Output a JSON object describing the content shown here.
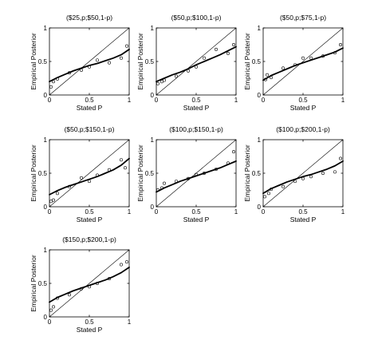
{
  "figure": {
    "ylabel": "Empirical Posterior",
    "xlabel": "Stated P"
  },
  "chart_data": [
    {
      "type": "scatter",
      "title": "($25,p;$50,1-p)",
      "xlabel": "Stated P",
      "ylabel": "Empirical Posterior",
      "xlim": [
        0,
        1
      ],
      "ylim": [
        0,
        1
      ],
      "xticks": [
        "0",
        "0.5",
        "1"
      ],
      "yticks": [
        "0",
        "0.5",
        "1"
      ],
      "series": [
        {
          "type": "scatter",
          "x": [
            0.02,
            0.05,
            0.1,
            0.25,
            0.4,
            0.5,
            0.6,
            0.75,
            0.9,
            0.97
          ],
          "y": [
            0.12,
            0.2,
            0.24,
            0.33,
            0.37,
            0.42,
            0.52,
            0.48,
            0.55,
            0.73
          ]
        },
        {
          "type": "line",
          "x": [
            0,
            0.1,
            0.2,
            0.3,
            0.4,
            0.5,
            0.6,
            0.7,
            0.8,
            0.9,
            1
          ],
          "y": [
            0.2,
            0.26,
            0.31,
            0.36,
            0.4,
            0.44,
            0.47,
            0.51,
            0.55,
            0.6,
            0.68
          ]
        },
        {
          "type": "line",
          "x": [
            0,
            1
          ],
          "y": [
            0,
            1
          ]
        }
      ]
    },
    {
      "type": "scatter",
      "title": "($50,p;$100,1-p)",
      "xlabel": "Stated P",
      "ylabel": "Empirical Posterior",
      "xlim": [
        0,
        1
      ],
      "ylim": [
        0,
        1
      ],
      "xticks": [
        "0",
        "0.5",
        "1"
      ],
      "yticks": [
        "0",
        "0.5",
        "1"
      ],
      "series": [
        {
          "type": "scatter",
          "x": [
            0.02,
            0.07,
            0.1,
            0.25,
            0.4,
            0.5,
            0.6,
            0.75,
            0.9,
            0.97
          ],
          "y": [
            0.17,
            0.2,
            0.22,
            0.28,
            0.36,
            0.42,
            0.55,
            0.68,
            0.62,
            0.75
          ]
        },
        {
          "type": "line",
          "x": [
            0,
            0.1,
            0.2,
            0.3,
            0.4,
            0.5,
            0.6,
            0.7,
            0.8,
            0.9,
            1
          ],
          "y": [
            0.2,
            0.25,
            0.3,
            0.34,
            0.39,
            0.45,
            0.5,
            0.55,
            0.6,
            0.66,
            0.72
          ]
        },
        {
          "type": "line",
          "x": [
            0,
            1
          ],
          "y": [
            0,
            1
          ]
        }
      ]
    },
    {
      "type": "scatter",
      "title": "($50,p;$75,1-p)",
      "xlabel": "Stated P",
      "ylabel": "Empirical Posterior",
      "xlim": [
        0,
        1
      ],
      "ylim": [
        0,
        1
      ],
      "xticks": [
        "0",
        "0.5",
        "1"
      ],
      "yticks": [
        "0",
        "0.5",
        "1"
      ],
      "series": [
        {
          "type": "scatter",
          "x": [
            0.03,
            0.05,
            0.1,
            0.25,
            0.4,
            0.5,
            0.6,
            0.75,
            0.9,
            0.97
          ],
          "y": [
            0.23,
            0.3,
            0.26,
            0.4,
            0.45,
            0.55,
            0.55,
            0.58,
            0.63,
            0.75
          ]
        },
        {
          "type": "line",
          "x": [
            0,
            0.1,
            0.2,
            0.3,
            0.4,
            0.5,
            0.6,
            0.7,
            0.8,
            0.9,
            1
          ],
          "y": [
            0.22,
            0.29,
            0.34,
            0.39,
            0.44,
            0.48,
            0.52,
            0.56,
            0.6,
            0.64,
            0.7
          ]
        },
        {
          "type": "line",
          "x": [
            0,
            1
          ],
          "y": [
            0,
            1
          ]
        }
      ]
    },
    {
      "type": "scatter",
      "title": "($50,p;$150,1-p)",
      "xlabel": "Stated P",
      "ylabel": "Empirical Posterior",
      "xlim": [
        0,
        1
      ],
      "ylim": [
        0,
        1
      ],
      "xticks": [
        "0",
        "0.5",
        "1"
      ],
      "yticks": [
        "0",
        "0.5",
        "1"
      ],
      "series": [
        {
          "type": "scatter",
          "x": [
            0.02,
            0.05,
            0.1,
            0.25,
            0.4,
            0.5,
            0.6,
            0.75,
            0.9,
            0.95
          ],
          "y": [
            0.08,
            0.1,
            0.2,
            0.3,
            0.43,
            0.38,
            0.47,
            0.55,
            0.7,
            0.58
          ]
        },
        {
          "type": "line",
          "x": [
            0,
            0.1,
            0.2,
            0.3,
            0.4,
            0.5,
            0.6,
            0.7,
            0.8,
            0.9,
            1
          ],
          "y": [
            0.18,
            0.24,
            0.29,
            0.33,
            0.37,
            0.41,
            0.45,
            0.5,
            0.55,
            0.62,
            0.72
          ]
        },
        {
          "type": "line",
          "x": [
            0,
            1
          ],
          "y": [
            0,
            1
          ]
        }
      ]
    },
    {
      "type": "scatter",
      "title": "($100,p;$150,1-p)",
      "xlabel": "Stated P",
      "ylabel": "Empirical Posterior",
      "xlim": [
        0,
        1
      ],
      "ylim": [
        0,
        1
      ],
      "xticks": [
        "0",
        "0.5",
        "1"
      ],
      "yticks": [
        "0",
        "0.5",
        "1"
      ],
      "series": [
        {
          "type": "scatter",
          "x": [
            0.02,
            0.07,
            0.1,
            0.25,
            0.4,
            0.5,
            0.6,
            0.75,
            0.9,
            0.97
          ],
          "y": [
            0.25,
            0.28,
            0.35,
            0.38,
            0.42,
            0.48,
            0.5,
            0.56,
            0.65,
            0.82
          ]
        },
        {
          "type": "line",
          "x": [
            0,
            0.1,
            0.2,
            0.3,
            0.4,
            0.5,
            0.6,
            0.7,
            0.8,
            0.9,
            1
          ],
          "y": [
            0.22,
            0.28,
            0.33,
            0.38,
            0.42,
            0.46,
            0.5,
            0.54,
            0.58,
            0.63,
            0.68
          ]
        },
        {
          "type": "line",
          "x": [
            0,
            1
          ],
          "y": [
            0,
            1
          ]
        }
      ]
    },
    {
      "type": "scatter",
      "title": "($100,p;$200,1-p)",
      "xlabel": "Stated P",
      "ylabel": "Empirical Posterior",
      "xlim": [
        0,
        1
      ],
      "ylim": [
        0,
        1
      ],
      "xticks": [
        "0",
        "0.5",
        "1"
      ],
      "yticks": [
        "0",
        "0.5",
        "1"
      ],
      "series": [
        {
          "type": "scatter",
          "x": [
            0.02,
            0.07,
            0.1,
            0.25,
            0.4,
            0.5,
            0.6,
            0.75,
            0.9,
            0.97
          ],
          "y": [
            0.15,
            0.2,
            0.26,
            0.3,
            0.38,
            0.42,
            0.45,
            0.5,
            0.52,
            0.72
          ]
        },
        {
          "type": "line",
          "x": [
            0,
            0.1,
            0.2,
            0.3,
            0.4,
            0.5,
            0.6,
            0.7,
            0.8,
            0.9,
            1
          ],
          "y": [
            0.2,
            0.27,
            0.32,
            0.37,
            0.41,
            0.45,
            0.48,
            0.52,
            0.56,
            0.61,
            0.68
          ]
        },
        {
          "type": "line",
          "x": [
            0,
            1
          ],
          "y": [
            0,
            1
          ]
        }
      ]
    },
    {
      "type": "scatter",
      "title": "($150,p;$200,1-p)",
      "xlabel": "Stated P",
      "ylabel": "Empirical Posterior",
      "xlim": [
        0,
        1
      ],
      "ylim": [
        0,
        1
      ],
      "xticks": [
        "0",
        "0.5",
        "1"
      ],
      "yticks": [
        "0",
        "0.5",
        "1"
      ],
      "series": [
        {
          "type": "scatter",
          "x": [
            0.02,
            0.05,
            0.1,
            0.25,
            0.4,
            0.5,
            0.6,
            0.75,
            0.9,
            0.97
          ],
          "y": [
            0.1,
            0.15,
            0.28,
            0.33,
            0.42,
            0.45,
            0.5,
            0.57,
            0.78,
            0.82
          ]
        },
        {
          "type": "line",
          "x": [
            0,
            0.1,
            0.2,
            0.3,
            0.4,
            0.5,
            0.6,
            0.7,
            0.8,
            0.9,
            1
          ],
          "y": [
            0.22,
            0.29,
            0.34,
            0.39,
            0.43,
            0.47,
            0.51,
            0.55,
            0.6,
            0.66,
            0.74
          ]
        },
        {
          "type": "line",
          "x": [
            0,
            1
          ],
          "y": [
            0,
            1
          ]
        }
      ]
    }
  ]
}
